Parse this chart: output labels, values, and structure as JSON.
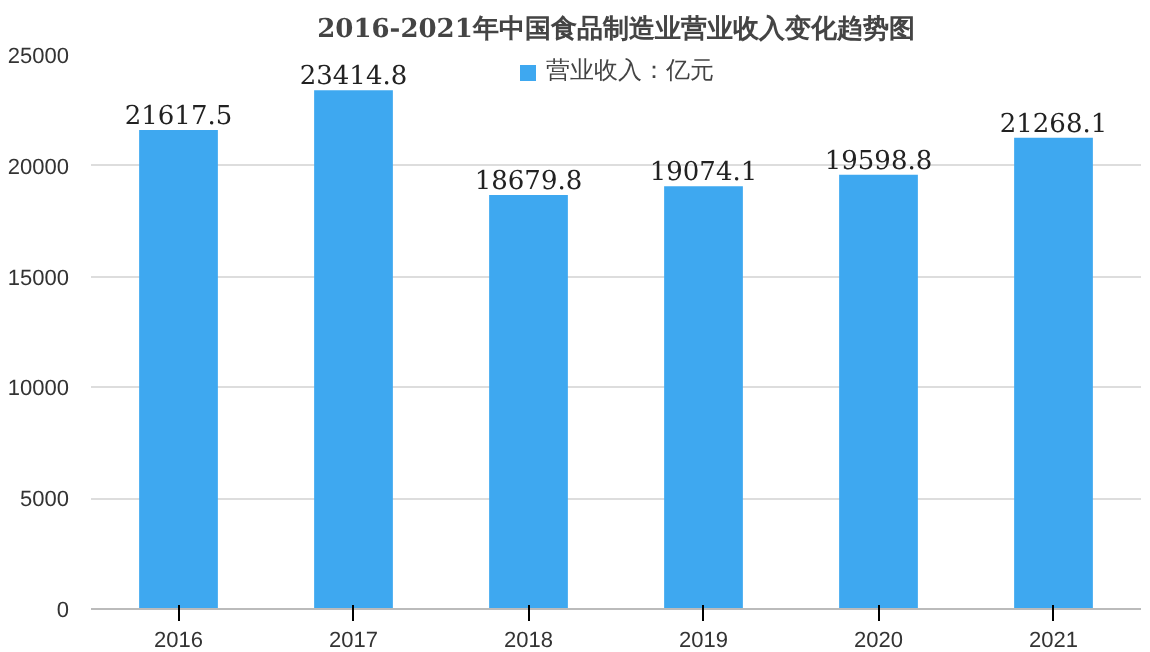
{
  "chart_data": {
    "type": "bar",
    "title": "2016-2021年中国食品制造业营业收入变化趋势图",
    "categories": [
      "2016",
      "2017",
      "2018",
      "2019",
      "2020",
      "2021"
    ],
    "series": [
      {
        "name": "营业收入：亿元",
        "color": "#3ea8f0",
        "values": [
          21617.5,
          23414.8,
          18679.8,
          19074.1,
          19598.8,
          21268.1
        ]
      }
    ],
    "ylim": [
      0,
      25000
    ],
    "yticks": [
      0,
      5000,
      10000,
      15000,
      20000,
      25000
    ],
    "grid": "y",
    "legend": "top",
    "data_labels": true
  }
}
